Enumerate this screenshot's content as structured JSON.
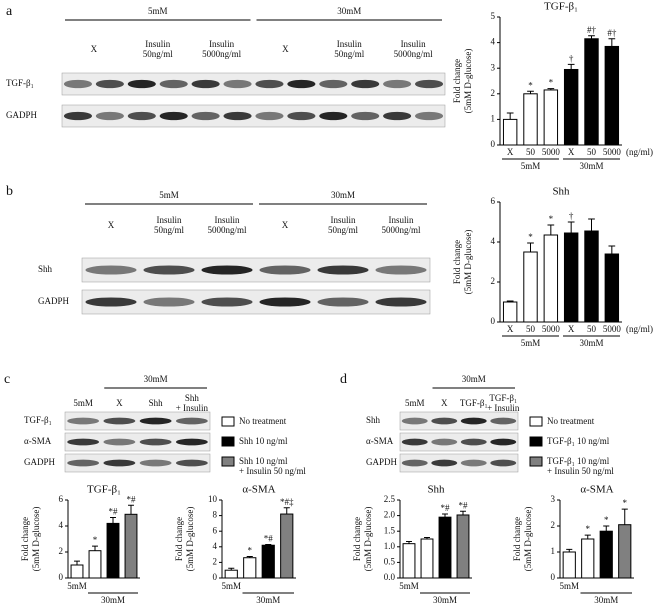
{
  "panels": [
    {
      "label": "a",
      "blot": {
        "groups": [
          {
            "name": "5mM",
            "span": [
              0,
              2
            ]
          },
          {
            "name": "30mM",
            "span": [
              3,
              5
            ]
          }
        ],
        "lanes": [
          [
            "X"
          ],
          [
            "Insulin",
            "50ng/ml"
          ],
          [
            "Insulin",
            "5000ng/ml"
          ],
          [
            "X"
          ],
          [
            "Insulin",
            "50ng/ml"
          ],
          [
            "Insulin",
            "5000ng/ml"
          ]
        ],
        "rows": [
          "TGF-β₁",
          "GADPH"
        ]
      }
    },
    {
      "label": "b",
      "blot": {
        "groups": [
          {
            "name": "5mM",
            "span": [
              0,
              2
            ]
          },
          {
            "name": "30mM",
            "span": [
              3,
              5
            ]
          }
        ],
        "lanes": [
          [
            "X"
          ],
          [
            "Insulin",
            "50ng/ml"
          ],
          [
            "Insulin",
            "5000ng/ml"
          ],
          [
            "X"
          ],
          [
            "Insulin",
            "50ng/ml"
          ],
          [
            "Insulin",
            "5000ng/ml"
          ]
        ],
        "rows": [
          "Shh",
          "GADPH"
        ]
      }
    },
    {
      "label": "c",
      "blot": {
        "groups": [
          {
            "name": "30mM",
            "span": [
              1,
              3
            ]
          }
        ],
        "lanes": [
          [
            "5mM"
          ],
          [
            "X"
          ],
          [
            "Shh"
          ],
          [
            "Shh",
            "+ Insulin"
          ]
        ],
        "rows": [
          "TGF-β₁",
          "α-SMA",
          "GADPH"
        ]
      },
      "legend": [
        {
          "name": [
            "No treatment"
          ],
          "color": "#ffffff"
        },
        {
          "name": [
            "Shh 10 ng/ml"
          ],
          "color": "#000000"
        },
        {
          "name": [
            "Shh 10 ng/ml",
            "+ Insulin 50 ng/ml"
          ],
          "color": "#808080"
        }
      ]
    },
    {
      "label": "d",
      "blot": {
        "groups": [
          {
            "name": "30mM",
            "span": [
              1,
              3
            ]
          }
        ],
        "lanes": [
          [
            "5mM"
          ],
          [
            "X"
          ],
          [
            "TGF-β₁"
          ],
          [
            "TGF-β₁",
            "+ Insulin"
          ]
        ],
        "rows": [
          "Shh",
          "α-SMA",
          "GAPDH"
        ]
      },
      "legend": [
        {
          "name": [
            "No treatment"
          ],
          "color": "#ffffff"
        },
        {
          "name": [
            "TGF-β₁ 10 ng/ml"
          ],
          "color": "#000000"
        },
        {
          "name": [
            "TGF-β₁ 10 ng/ml",
            "+ Insulin 50 ng/ml"
          ],
          "color": "#808080"
        }
      ]
    }
  ],
  "chart_data": [
    {
      "type": "bar",
      "title": "TGF-β₁",
      "y_label": [
        "Fold change",
        "(5mM D-glucose)"
      ],
      "categories": [
        "X",
        "50",
        "5000",
        "X",
        "50",
        "5000"
      ],
      "x_unit": "(ng/ml)",
      "groups": [
        {
          "name": "5mM",
          "span": [
            0,
            2
          ]
        },
        {
          "name": "30mM",
          "span": [
            3,
            5
          ]
        }
      ],
      "values": [
        1.0,
        2.0,
        2.15,
        2.95,
        4.15,
        3.85
      ],
      "errors": [
        0.25,
        0.1,
        0.05,
        0.2,
        0.12,
        0.3
      ],
      "annotations": [
        null,
        "*",
        "*",
        "†",
        "#†",
        "#†"
      ],
      "colors": [
        "#ffffff",
        "#ffffff",
        "#ffffff",
        "#000000",
        "#000000",
        "#000000"
      ],
      "ylim": [
        0,
        5
      ],
      "yticks": [
        0,
        1,
        2,
        3,
        4,
        5
      ]
    },
    {
      "type": "bar",
      "title": "Shh",
      "y_label": [
        "Fold change",
        "(5mM D-glucose)"
      ],
      "categories": [
        "X",
        "50",
        "5000",
        "X",
        "50",
        "5000"
      ],
      "x_unit": "(ng/ml)",
      "groups": [
        {
          "name": "5mM",
          "span": [
            0,
            2
          ]
        },
        {
          "name": "30mM",
          "span": [
            3,
            5
          ]
        }
      ],
      "values": [
        1.0,
        3.5,
        4.35,
        4.45,
        4.55,
        3.4
      ],
      "errors": [
        0.05,
        0.45,
        0.5,
        0.55,
        0.6,
        0.4
      ],
      "annotations": [
        null,
        "*",
        "*",
        "†",
        null,
        null
      ],
      "colors": [
        "#ffffff",
        "#ffffff",
        "#ffffff",
        "#000000",
        "#000000",
        "#000000"
      ],
      "ylim": [
        0,
        6
      ],
      "yticks": [
        0,
        2,
        4,
        6
      ]
    },
    {
      "type": "bar",
      "title": "TGF-β₁",
      "y_label": [
        "Fold change",
        "(5mM D-glucose)"
      ],
      "categories": [
        "5mM",
        null,
        null,
        null
      ],
      "groups": [
        {
          "name": "30mM",
          "span": [
            1,
            3
          ]
        }
      ],
      "values": [
        1.0,
        2.1,
        4.2,
        4.9
      ],
      "errors": [
        0.3,
        0.35,
        0.45,
        0.7
      ],
      "annotations": [
        null,
        "*",
        "*#",
        "*#"
      ],
      "colors": [
        "#ffffff",
        "#ffffff",
        "#000000",
        "#808080"
      ],
      "ylim": [
        0,
        6
      ],
      "yticks": [
        0,
        2,
        4,
        6
      ]
    },
    {
      "type": "bar",
      "title": "α-SMA",
      "y_label": [
        "Fold change",
        "(5mM D-glucose)"
      ],
      "categories": [
        "5mM",
        null,
        null,
        null
      ],
      "groups": [
        {
          "name": "30mM",
          "span": [
            1,
            3
          ]
        }
      ],
      "values": [
        1.0,
        2.6,
        4.2,
        8.2
      ],
      "errors": [
        0.25,
        0.15,
        0.1,
        0.8
      ],
      "annotations": [
        null,
        "*",
        "*#",
        "*#‡"
      ],
      "colors": [
        "#ffffff",
        "#ffffff",
        "#000000",
        "#808080"
      ],
      "ylim": [
        0,
        10
      ],
      "yticks": [
        0,
        2,
        4,
        6,
        8,
        10
      ]
    },
    {
      "type": "bar",
      "title": "Shh",
      "y_label": [
        "Fold change",
        "(5mM D-glucose)"
      ],
      "categories": [
        "5mM",
        null,
        null,
        null
      ],
      "groups": [
        {
          "name": "30mM",
          "span": [
            1,
            3
          ]
        }
      ],
      "values": [
        1.1,
        1.25,
        1.95,
        2.02
      ],
      "errors": [
        0.07,
        0.05,
        0.1,
        0.12
      ],
      "annotations": [
        null,
        null,
        "*#",
        "*#"
      ],
      "colors": [
        "#ffffff",
        "#ffffff",
        "#000000",
        "#808080"
      ],
      "ylim": [
        0,
        2.5
      ],
      "yticks": [
        {
          "value": 0,
          "label": "0.0"
        },
        {
          "value": 0.5,
          "label": "0.5"
        },
        {
          "value": 1,
          "label": "1.0"
        },
        {
          "value": 1.5,
          "label": "1.5"
        },
        {
          "value": 2,
          "label": "2.0"
        },
        {
          "value": 2.5,
          "label": "2.5"
        }
      ]
    },
    {
      "type": "bar",
      "title": "α-SMA",
      "y_label": [
        "Fold change",
        "(5mM D-glucose)"
      ],
      "categories": [
        "5mM",
        null,
        null,
        null
      ],
      "groups": [
        {
          "name": "30mM",
          "span": [
            1,
            3
          ]
        }
      ],
      "values": [
        1.0,
        1.5,
        1.8,
        2.05
      ],
      "errors": [
        0.1,
        0.15,
        0.2,
        0.6
      ],
      "annotations": [
        null,
        "*",
        "*",
        "*"
      ],
      "colors": [
        "#ffffff",
        "#ffffff",
        "#000000",
        "#808080"
      ],
      "ylim": [
        0,
        3
      ],
      "yticks": [
        0,
        1,
        2,
        3
      ]
    }
  ]
}
